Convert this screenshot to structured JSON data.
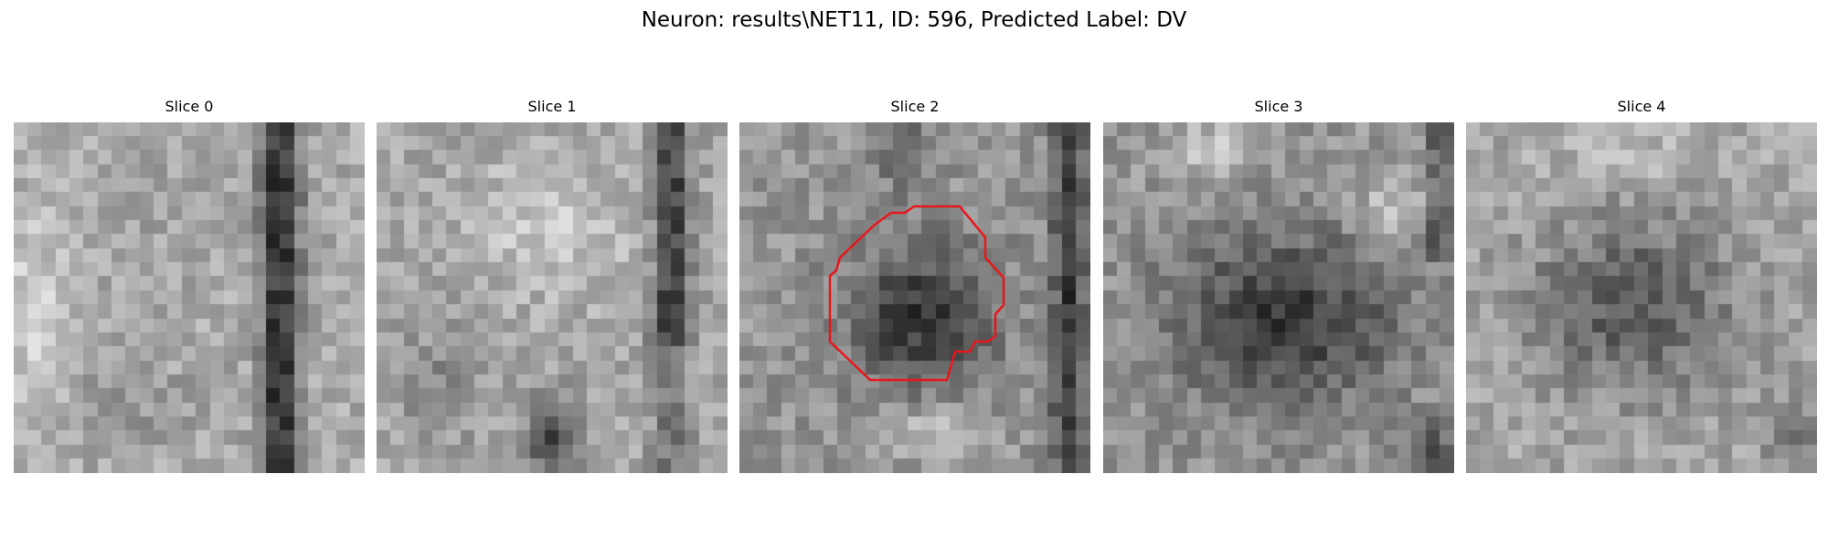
{
  "figure": {
    "title": "Neuron: results\\NET11, ID: 596, Predicted Label: DV"
  },
  "panels": [
    {
      "title": "Slice 0"
    },
    {
      "title": "Slice 1"
    },
    {
      "title": "Slice 2"
    },
    {
      "title": "Slice 3"
    },
    {
      "title": "Slice 4"
    }
  ],
  "colors": {
    "contour": "#e8161b",
    "background": "#ffffff"
  }
}
